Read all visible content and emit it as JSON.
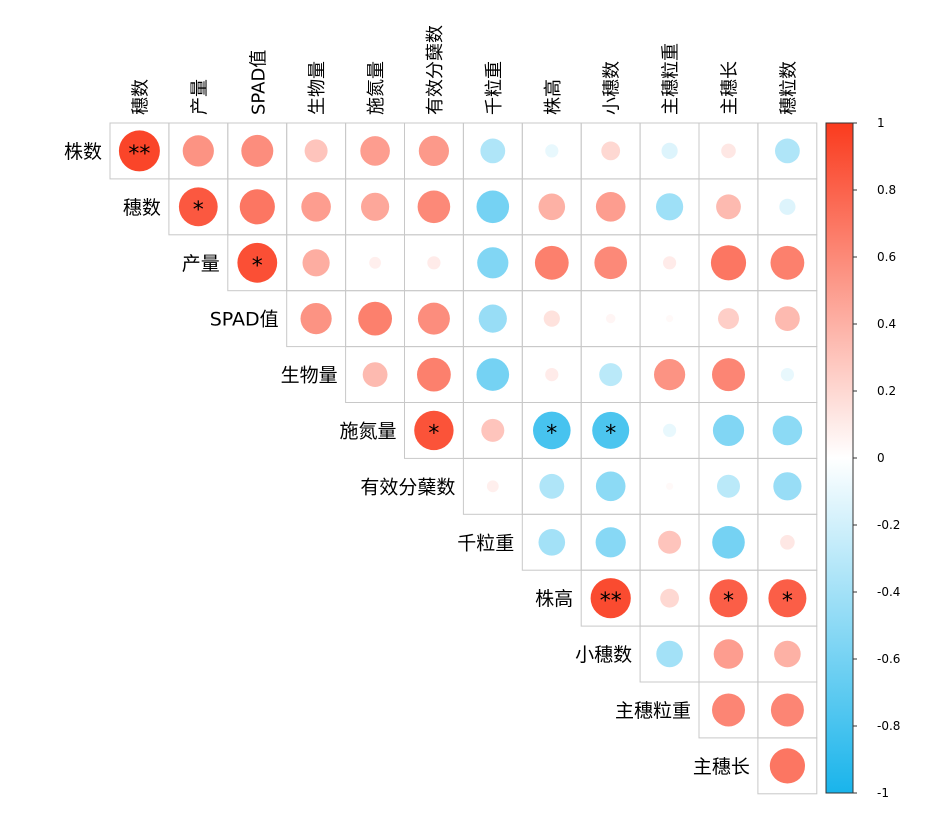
{
  "chart_data": {
    "type": "heatmap",
    "style": "correlogram-circles-upper-triangle",
    "variables": [
      "株数",
      "穗数",
      "产量",
      "SPAD值",
      "生物量",
      "施氮量",
      "有效分蘖数",
      "千粒重",
      "株高",
      "小穗数",
      "主穗粒重",
      "主穗长",
      "穗粒数"
    ],
    "row_labels": [
      "株数",
      "穗数",
      "产量",
      "SPAD值",
      "生物量",
      "施氮量",
      "有效分蘖数",
      "千粒重",
      "株高",
      "小穗数",
      "主穗粒重",
      "主穗长"
    ],
    "col_labels": [
      "穗数",
      "产量",
      "SPAD值",
      "生物量",
      "施氮量",
      "有效分蘖数",
      "千粒重",
      "株高",
      "小穗数",
      "主穗粒重",
      "主穗长",
      "穗粒数"
    ],
    "values": [
      [
        0.95,
        0.55,
        0.58,
        0.3,
        0.5,
        0.52,
        -0.35,
        -0.1,
        0.2,
        -0.15,
        0.12,
        -0.35
      ],
      [
        null,
        0.85,
        0.7,
        0.5,
        0.45,
        0.6,
        -0.6,
        0.4,
        0.5,
        -0.42,
        0.35,
        -0.15
      ],
      [
        null,
        null,
        0.9,
        0.42,
        0.08,
        0.1,
        -0.55,
        0.65,
        0.6,
        0.1,
        0.7,
        0.65
      ],
      [
        null,
        null,
        null,
        0.55,
        0.65,
        0.58,
        -0.45,
        0.15,
        0.05,
        0.03,
        0.25,
        0.35
      ],
      [
        null,
        null,
        null,
        null,
        0.35,
        0.65,
        -0.6,
        0.1,
        -0.3,
        0.55,
        0.62,
        -0.1
      ],
      [
        null,
        null,
        null,
        null,
        null,
        0.88,
        0.3,
        -0.8,
        -0.78,
        -0.1,
        -0.55,
        -0.5
      ],
      [
        null,
        null,
        null,
        null,
        null,
        null,
        0.08,
        -0.35,
        -0.5,
        0.03,
        -0.3,
        -0.45
      ],
      [
        null,
        null,
        null,
        null,
        null,
        null,
        null,
        -0.4,
        -0.52,
        0.3,
        -0.6,
        0.12
      ],
      [
        null,
        null,
        null,
        null,
        null,
        null,
        null,
        null,
        0.92,
        0.2,
        0.82,
        0.82
      ],
      [
        null,
        null,
        null,
        null,
        null,
        null,
        null,
        null,
        null,
        -0.4,
        0.5,
        0.4
      ],
      [
        null,
        null,
        null,
        null,
        null,
        null,
        null,
        null,
        null,
        null,
        0.62,
        0.62
      ],
      [
        null,
        null,
        null,
        null,
        null,
        null,
        null,
        null,
        null,
        null,
        null,
        0.7
      ]
    ],
    "significance": [
      [
        "**",
        "",
        "",
        "",
        "",
        "",
        "",
        "",
        "",
        "",
        "",
        ""
      ],
      [
        "",
        "*",
        "",
        "",
        "",
        "",
        "",
        "",
        "",
        "",
        "",
        ""
      ],
      [
        "",
        "",
        "*",
        "",
        "",
        "",
        "",
        "",
        "",
        "",
        "",
        ""
      ],
      [
        "",
        "",
        "",
        "",
        "",
        "",
        "",
        "",
        "",
        "",
        "",
        ""
      ],
      [
        "",
        "",
        "",
        "",
        "",
        "",
        "",
        "",
        "",
        "",
        "",
        ""
      ],
      [
        "",
        "",
        "",
        "",
        "",
        "*",
        "",
        "*",
        "*",
        "",
        "",
        ""
      ],
      [
        "",
        "",
        "",
        "",
        "",
        "",
        "",
        "",
        "",
        "",
        "",
        ""
      ],
      [
        "",
        "",
        "",
        "",
        "",
        "",
        "",
        "",
        "",
        "",
        "",
        ""
      ],
      [
        "",
        "",
        "",
        "",
        "",
        "",
        "",
        "",
        "**",
        "",
        "*",
        "*"
      ],
      [
        "",
        "",
        "",
        "",
        "",
        "",
        "",
        "",
        "",
        "",
        "",
        ""
      ],
      [
        "",
        "",
        "",
        "",
        "",
        "",
        "",
        "",
        "",
        "",
        "",
        ""
      ],
      [
        "",
        "",
        "",
        "",
        "",
        "",
        "",
        "",
        "",
        "",
        "",
        ""
      ]
    ],
    "colorbar": {
      "range": [
        -1,
        1
      ],
      "ticks": [
        "1",
        "0.8",
        "0.6",
        "0.4",
        "0.2",
        "0",
        "-0.2",
        "-0.4",
        "-0.6",
        "-0.8",
        "-1"
      ],
      "color_positive": "#fa3b1e",
      "color_zero": "#ffffff",
      "color_negative": "#19b4eb"
    },
    "grid_color": "#c8c8c8"
  }
}
